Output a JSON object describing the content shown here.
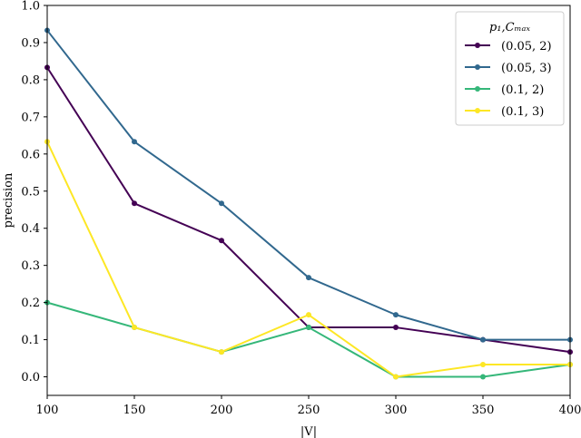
{
  "chart_data": {
    "type": "line",
    "xlabel": "|V|",
    "ylabel": "precision",
    "x": [
      100,
      150,
      200,
      250,
      300,
      350,
      400
    ],
    "xlim": [
      100,
      400
    ],
    "ylim": [
      -0.05,
      1.0
    ],
    "xticks": [
      100,
      150,
      200,
      250,
      300,
      350,
      400
    ],
    "yticks": [
      0.0,
      0.1,
      0.2,
      0.3,
      0.4,
      0.5,
      0.6,
      0.7,
      0.8,
      0.9,
      1.0
    ],
    "xtick_labels": [
      "100",
      "150",
      "200",
      "250",
      "300",
      "350",
      "400"
    ],
    "ytick_labels": [
      "0.0",
      "0.1",
      "0.2",
      "0.3",
      "0.4",
      "0.5",
      "0.6",
      "0.7",
      "0.8",
      "0.9",
      "1.0"
    ],
    "grid": false,
    "legend": {
      "title": "p₁,Cₘₐₓ",
      "placement": "top-right"
    },
    "series": [
      {
        "name": "(0.05, 2)",
        "color": "#440154",
        "values": [
          0.833,
          0.467,
          0.367,
          0.133,
          0.133,
          0.1,
          0.067
        ]
      },
      {
        "name": "(0.05, 3)",
        "color": "#31688e",
        "values": [
          0.933,
          0.633,
          0.467,
          0.267,
          0.167,
          0.1,
          0.1
        ]
      },
      {
        "name": "(0.1, 2)",
        "color": "#35b779",
        "values": [
          0.2,
          0.133,
          0.067,
          0.133,
          0.0,
          0.0,
          0.033
        ]
      },
      {
        "name": "(0.1, 3)",
        "color": "#fde725",
        "values": [
          0.633,
          0.133,
          0.067,
          0.167,
          0.0,
          0.033,
          0.033
        ]
      }
    ]
  }
}
